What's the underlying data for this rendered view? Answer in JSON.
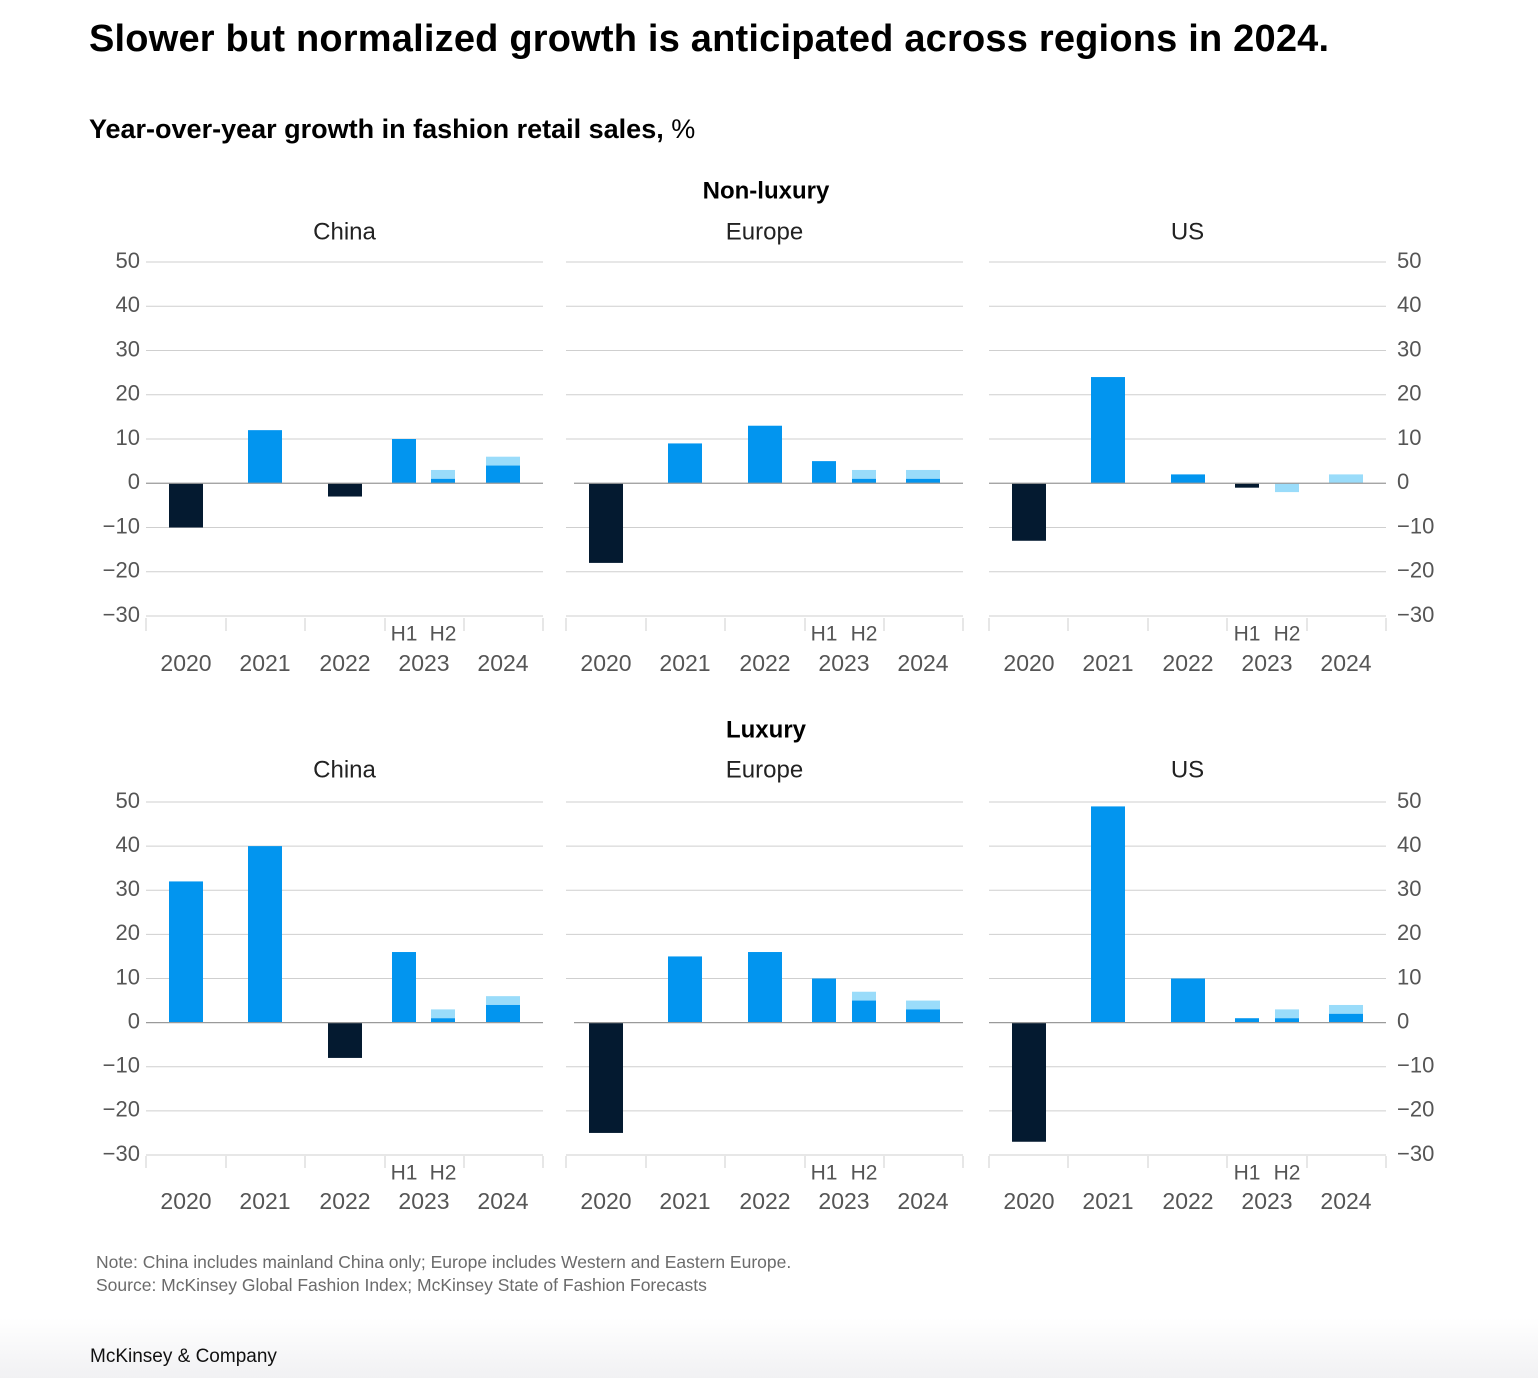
{
  "title": "Slower but normalized growth is anticipated across regions in 2024.",
  "subtitle": {
    "text": "Year-over-year growth in fashion retail sales,",
    "unit": "%"
  },
  "notes": {
    "note": "Note: China includes mainland China only; Europe includes Western and Eastern Europe.",
    "source": "Source: McKinsey Global Fashion Index; McKinsey State of Fashion Forecasts"
  },
  "brand": "McKinsey & Company",
  "colors": {
    "negative": "#041a30",
    "positive": "#0295ef",
    "forecast": "#9adcfa",
    "grid": "#cfcfcf",
    "axis_text": "#555555"
  },
  "chart_data": {
    "type": "bar",
    "ylim": [
      -30,
      50
    ],
    "yticks": [
      50,
      40,
      30,
      20,
      10,
      0,
      -10,
      -20,
      -30
    ],
    "categories": [
      "2020",
      "2021",
      "2022",
      "2023",
      "2024"
    ],
    "sub_labels": [
      "H1",
      "H2"
    ],
    "grid": true,
    "legend": "none",
    "groups": [
      {
        "name": "Non-luxury",
        "panels": [
          {
            "region": "China",
            "bars": [
              {
                "category": "2020",
                "value": -10
              },
              {
                "category": "2021",
                "value": 12
              },
              {
                "category": "2022",
                "value": -3
              },
              {
                "category": "2023",
                "sub": "H1",
                "value": 10
              },
              {
                "category": "2023",
                "sub": "H2",
                "value": 1,
                "forecast_range": [
                  1,
                  3
                ]
              },
              {
                "category": "2024",
                "value": 4,
                "forecast_range": [
                  4,
                  6
                ]
              }
            ]
          },
          {
            "region": "Europe",
            "bars": [
              {
                "category": "2020",
                "value": -18
              },
              {
                "category": "2021",
                "value": 9
              },
              {
                "category": "2022",
                "value": 13
              },
              {
                "category": "2023",
                "sub": "H1",
                "value": 5
              },
              {
                "category": "2023",
                "sub": "H2",
                "value": 1,
                "forecast_range": [
                  1,
                  3
                ]
              },
              {
                "category": "2024",
                "value": 1,
                "forecast_range": [
                  1,
                  3
                ]
              }
            ]
          },
          {
            "region": "US",
            "bars": [
              {
                "category": "2020",
                "value": -13
              },
              {
                "category": "2021",
                "value": 24
              },
              {
                "category": "2022",
                "value": 2
              },
              {
                "category": "2023",
                "sub": "H1",
                "value": -1
              },
              {
                "category": "2023",
                "sub": "H2",
                "value": 0,
                "forecast_range": [
                  -2,
                  0
                ]
              },
              {
                "category": "2024",
                "value": 0,
                "forecast_range": [
                  0,
                  2
                ]
              }
            ]
          }
        ]
      },
      {
        "name": "Luxury",
        "panels": [
          {
            "region": "China",
            "bars": [
              {
                "category": "2020",
                "value": 32
              },
              {
                "category": "2021",
                "value": 40
              },
              {
                "category": "2022",
                "value": -8
              },
              {
                "category": "2023",
                "sub": "H1",
                "value": 16
              },
              {
                "category": "2023",
                "sub": "H2",
                "value": 1,
                "forecast_range": [
                  1,
                  3
                ]
              },
              {
                "category": "2024",
                "value": 4,
                "forecast_range": [
                  4,
                  6
                ]
              }
            ]
          },
          {
            "region": "Europe",
            "bars": [
              {
                "category": "2020",
                "value": -25
              },
              {
                "category": "2021",
                "value": 15
              },
              {
                "category": "2022",
                "value": 16
              },
              {
                "category": "2023",
                "sub": "H1",
                "value": 10
              },
              {
                "category": "2023",
                "sub": "H2",
                "value": 5,
                "forecast_range": [
                  5,
                  7
                ]
              },
              {
                "category": "2024",
                "value": 3,
                "forecast_range": [
                  3,
                  5
                ]
              }
            ]
          },
          {
            "region": "US",
            "bars": [
              {
                "category": "2020",
                "value": -27
              },
              {
                "category": "2021",
                "value": 49
              },
              {
                "category": "2022",
                "value": 10
              },
              {
                "category": "2023",
                "sub": "H1",
                "value": 1
              },
              {
                "category": "2023",
                "sub": "H2",
                "value": 1,
                "forecast_range": [
                  1,
                  3
                ]
              },
              {
                "category": "2024",
                "value": 2,
                "forecast_range": [
                  2,
                  4
                ]
              }
            ]
          }
        ]
      }
    ]
  }
}
